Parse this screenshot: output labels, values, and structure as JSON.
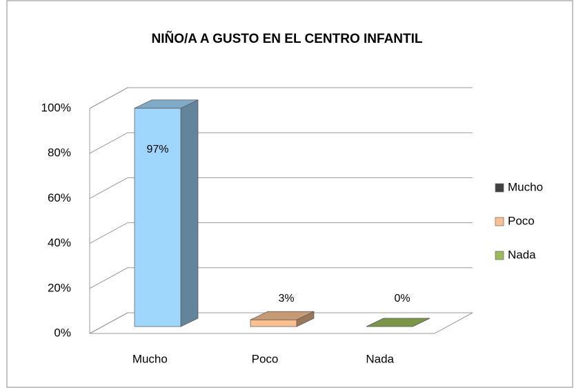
{
  "chart_data": {
    "type": "bar3d",
    "title": "NIÑO/A A GUSTO EN EL CENTRO INFANTIL",
    "categories": [
      "Mucho",
      "Poco",
      "Nada"
    ],
    "values": [
      97,
      3,
      0
    ],
    "value_labels": [
      "97%",
      "3%",
      "0%"
    ],
    "colors": [
      "#9fd6fb",
      "#fac090",
      "#9bbb59"
    ],
    "ylim": [
      0,
      100
    ],
    "yticks": [
      {
        "value": 0,
        "label": "0%"
      },
      {
        "value": 20,
        "label": "20%"
      },
      {
        "value": 40,
        "label": "40%"
      },
      {
        "value": 60,
        "label": "60%"
      },
      {
        "value": 80,
        "label": "80%"
      },
      {
        "value": 100,
        "label": "100%"
      }
    ],
    "grid": true,
    "legend": {
      "position": "right",
      "entries": [
        {
          "name": "Mucho",
          "color": "#404040"
        },
        {
          "name": "Poco",
          "color": "#fac090"
        },
        {
          "name": "Nada",
          "color": "#9bbb59"
        }
      ]
    }
  }
}
